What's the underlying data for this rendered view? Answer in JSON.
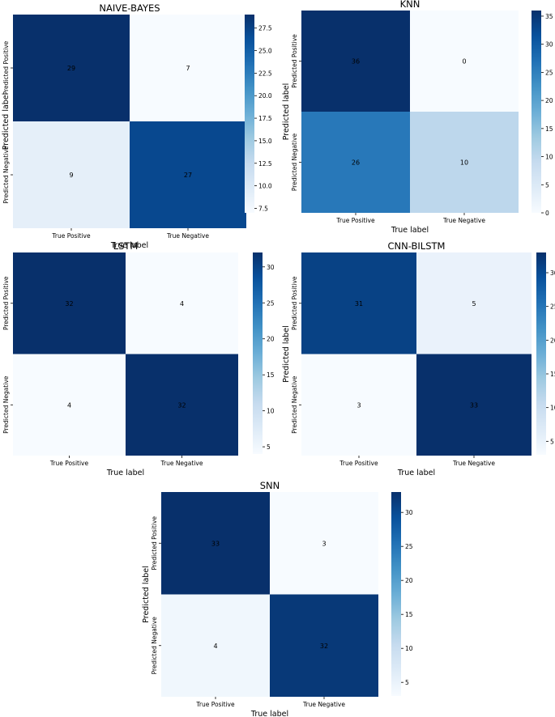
{
  "chart_data": [
    {
      "type": "heatmap",
      "title": "NAIVE-BAYES",
      "xlabel": "True label",
      "ylabel": "Predicted label",
      "x_categories": [
        "True Positive",
        "True Negative"
      ],
      "y_categories": [
        "Predicted Positive",
        "Predicted Negative"
      ],
      "values": [
        [
          29,
          7
        ],
        [
          9,
          27
        ]
      ],
      "colorbar": {
        "range": [
          7,
          29
        ],
        "ticks": [
          "7.5",
          "10.0",
          "12.5",
          "15.0",
          "17.5",
          "20.0",
          "22.5",
          "25.0",
          "27.5"
        ]
      }
    },
    {
      "type": "heatmap",
      "title": "KNN",
      "xlabel": "True label",
      "ylabel": "Predicted label",
      "x_categories": [
        "True Positive",
        "True Negative"
      ],
      "y_categories": [
        "Predicted Positive",
        "Predicted Negative"
      ],
      "values": [
        [
          36,
          0
        ],
        [
          26,
          10
        ]
      ],
      "colorbar": {
        "range": [
          0,
          36
        ],
        "ticks": [
          "0",
          "5",
          "10",
          "15",
          "20",
          "25",
          "30",
          "35"
        ]
      }
    },
    {
      "type": "heatmap",
      "title": "LSTM",
      "xlabel": "True label",
      "ylabel": "Predicted label",
      "x_categories": [
        "True Positive",
        "True Negative"
      ],
      "y_categories": [
        "Predicted Positive",
        "Predicted Negative"
      ],
      "values": [
        [
          32,
          4
        ],
        [
          4,
          32
        ]
      ],
      "colorbar": {
        "range": [
          4,
          32
        ],
        "ticks": [
          "5",
          "10",
          "15",
          "20",
          "25",
          "30"
        ]
      }
    },
    {
      "type": "heatmap",
      "title": "CNN-BILSTM",
      "xlabel": "True label",
      "ylabel": "Predicted label",
      "x_categories": [
        "True Positive",
        "True Negative"
      ],
      "y_categories": [
        "Predicted Positive",
        "Predicted Negative"
      ],
      "values": [
        [
          31,
          5
        ],
        [
          3,
          33
        ]
      ],
      "colorbar": {
        "range": [
          3,
          33
        ],
        "ticks": [
          "5",
          "10",
          "15",
          "20",
          "25",
          "30"
        ]
      }
    },
    {
      "type": "heatmap",
      "title": "SNN",
      "xlabel": "True label",
      "ylabel": "Predicted label",
      "x_categories": [
        "True Positive",
        "True Negative"
      ],
      "y_categories": [
        "Predicted Positive",
        "Predicted Negative"
      ],
      "values": [
        [
          33,
          3
        ],
        [
          4,
          32
        ]
      ],
      "colorbar": {
        "range": [
          3,
          33
        ],
        "ticks": [
          "5",
          "10",
          "15",
          "20",
          "25",
          "30"
        ]
      }
    }
  ]
}
